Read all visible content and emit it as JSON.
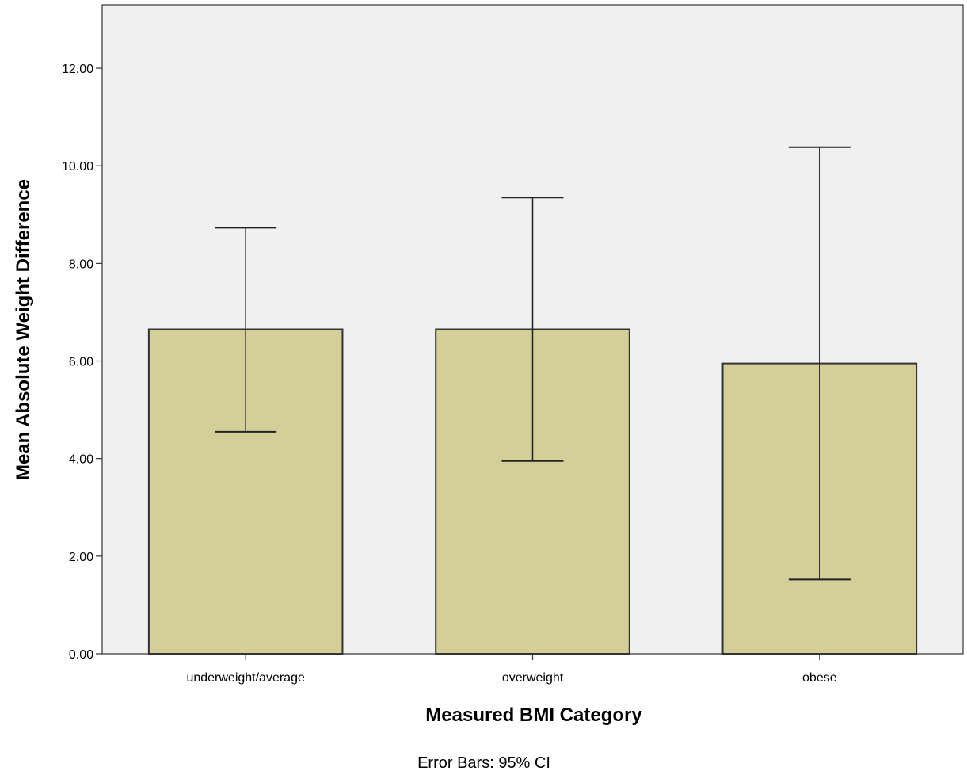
{
  "chart_data": {
    "type": "bar",
    "xlabel": "Measured BMI Category",
    "ylabel": "Mean Absolute Weight Difference",
    "categories": [
      "underweight/average",
      "overweight",
      "obese"
    ],
    "values": [
      6.65,
      6.65,
      5.95
    ],
    "error_bars": {
      "type": "95% CI",
      "lower": [
        4.55,
        3.95,
        1.52
      ],
      "upper": [
        8.73,
        9.35,
        10.38
      ]
    },
    "ylim": [
      0,
      13.3
    ],
    "yticks": [
      0,
      2,
      4,
      6,
      8,
      10,
      12
    ],
    "ytick_labels": [
      "0.00",
      "2.00",
      "4.00",
      "6.00",
      "8.00",
      "10.00",
      "12.00"
    ],
    "footnote": "Error Bars: 95% CI",
    "grid": false,
    "legend": "none",
    "colors": {
      "bar_fill": "#d4cf98",
      "bar_stroke": "#333333",
      "plot_background": "#f0f0f0",
      "page_background": "#ffffff"
    }
  }
}
